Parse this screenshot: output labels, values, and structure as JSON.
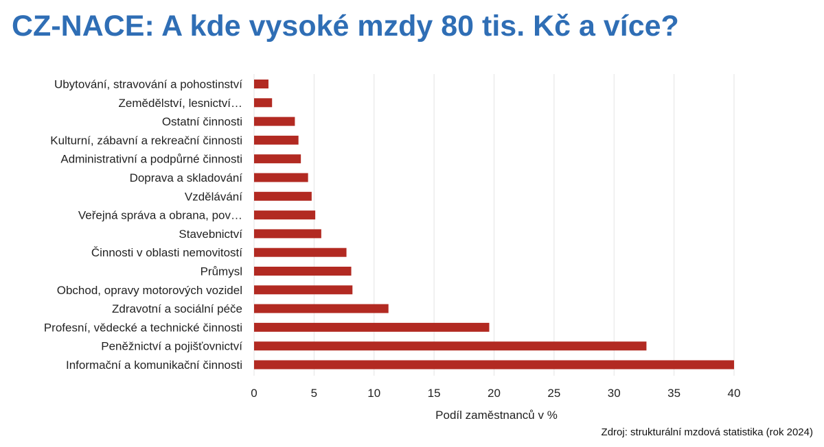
{
  "title": "CZ-NACE: A kde vysoké mzdy 80 tis. Kč a více?",
  "source": "Zdroj: strukturální mzdová statistika (rok 2024)",
  "colors": {
    "title": "#2f6eb5",
    "bar": "#b22a22",
    "grid": "#e3e3e3"
  },
  "chart_data": {
    "type": "bar",
    "orientation": "horizontal",
    "categories": [
      "Ubytování, stravování a pohostinství",
      "Zemědělství, lesnictví…",
      "Ostatní činnosti",
      "Kulturní, zábavní a rekreační činnosti",
      "Administrativní a podpůrné činnosti",
      "Doprava a skladování",
      "Vzdělávání",
      "Veřejná správa a obrana, pov…",
      "Stavebnictví",
      "Činnosti v oblasti nemovitostí",
      "Průmysl",
      "Obchod, opravy motorových vozidel",
      "Zdravotní a sociální péče",
      "Profesní, vědecké a technické činnosti",
      "Peněžnictví a pojišťovnictví",
      "Informační a komunikační činnosti"
    ],
    "values": [
      1.2,
      1.5,
      3.4,
      3.7,
      3.9,
      4.5,
      4.8,
      5.1,
      5.6,
      7.7,
      8.1,
      8.2,
      11.2,
      19.6,
      32.7,
      40.0
    ],
    "xlabel": "Podíl zaměstnanců v %",
    "ylabel": "",
    "xlim": [
      0,
      40
    ],
    "xticks": [
      "0",
      "5",
      "10",
      "15",
      "20",
      "25",
      "30",
      "35",
      "40"
    ],
    "grid": "vertical"
  }
}
